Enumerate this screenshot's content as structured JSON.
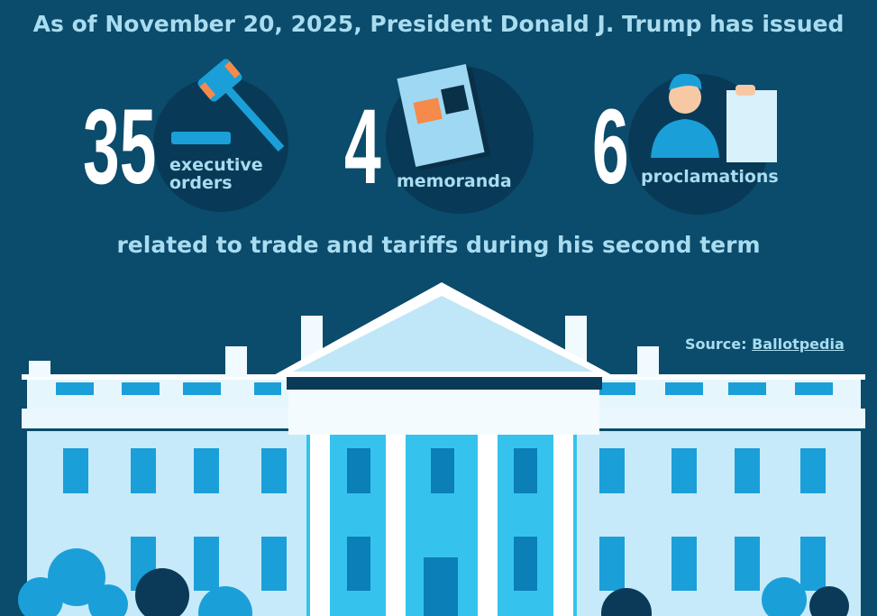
{
  "header": {
    "title": "As of November 20, 2025, President Donald J. Trump has issued"
  },
  "stats": [
    {
      "number": 35,
      "label": "executive orders"
    },
    {
      "number": 4,
      "label": "memoranda"
    },
    {
      "number": 6,
      "label": "proclamations"
    }
  ],
  "subtitle": "related to trade and tariffs during his second term",
  "source": {
    "label": "Source:",
    "link": "Ballotpedia"
  }
}
